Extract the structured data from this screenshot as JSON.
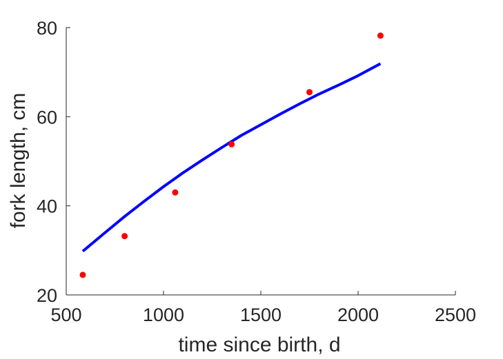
{
  "chart_data": {
    "type": "scatter",
    "title": "",
    "xlabel": "time since birth, d",
    "ylabel": "fork length, cm",
    "xlim": [
      500,
      2500
    ],
    "ylim": [
      20,
      80
    ],
    "xticks": [
      "500",
      "1000",
      "1500",
      "2000",
      "2500"
    ],
    "yticks": [
      "20",
      "40",
      "60",
      "80"
    ],
    "grid": false,
    "legend": "none",
    "series": [
      {
        "kind": "points",
        "color": "#ff0000",
        "points": [
          {
            "x": 585,
            "y": 24.5
          },
          {
            "x": 800,
            "y": 33.2
          },
          {
            "x": 1060,
            "y": 43.0
          },
          {
            "x": 1350,
            "y": 53.8
          },
          {
            "x": 1750,
            "y": 65.5
          },
          {
            "x": 2115,
            "y": 78.2
          }
        ]
      },
      {
        "kind": "fit-line",
        "color": "#0000ff",
        "points": [
          {
            "x": 585,
            "y": 29.8
          },
          {
            "x": 700,
            "y": 34.0
          },
          {
            "x": 800,
            "y": 37.6
          },
          {
            "x": 900,
            "y": 41.0
          },
          {
            "x": 1000,
            "y": 44.3
          },
          {
            "x": 1100,
            "y": 47.4
          },
          {
            "x": 1200,
            "y": 50.3
          },
          {
            "x": 1300,
            "y": 53.1
          },
          {
            "x": 1400,
            "y": 55.8
          },
          {
            "x": 1500,
            "y": 58.2
          },
          {
            "x": 1600,
            "y": 60.6
          },
          {
            "x": 1700,
            "y": 62.9
          },
          {
            "x": 1800,
            "y": 65.1
          },
          {
            "x": 1900,
            "y": 67.1
          },
          {
            "x": 2000,
            "y": 69.2
          },
          {
            "x": 2115,
            "y": 71.9
          }
        ]
      }
    ]
  }
}
